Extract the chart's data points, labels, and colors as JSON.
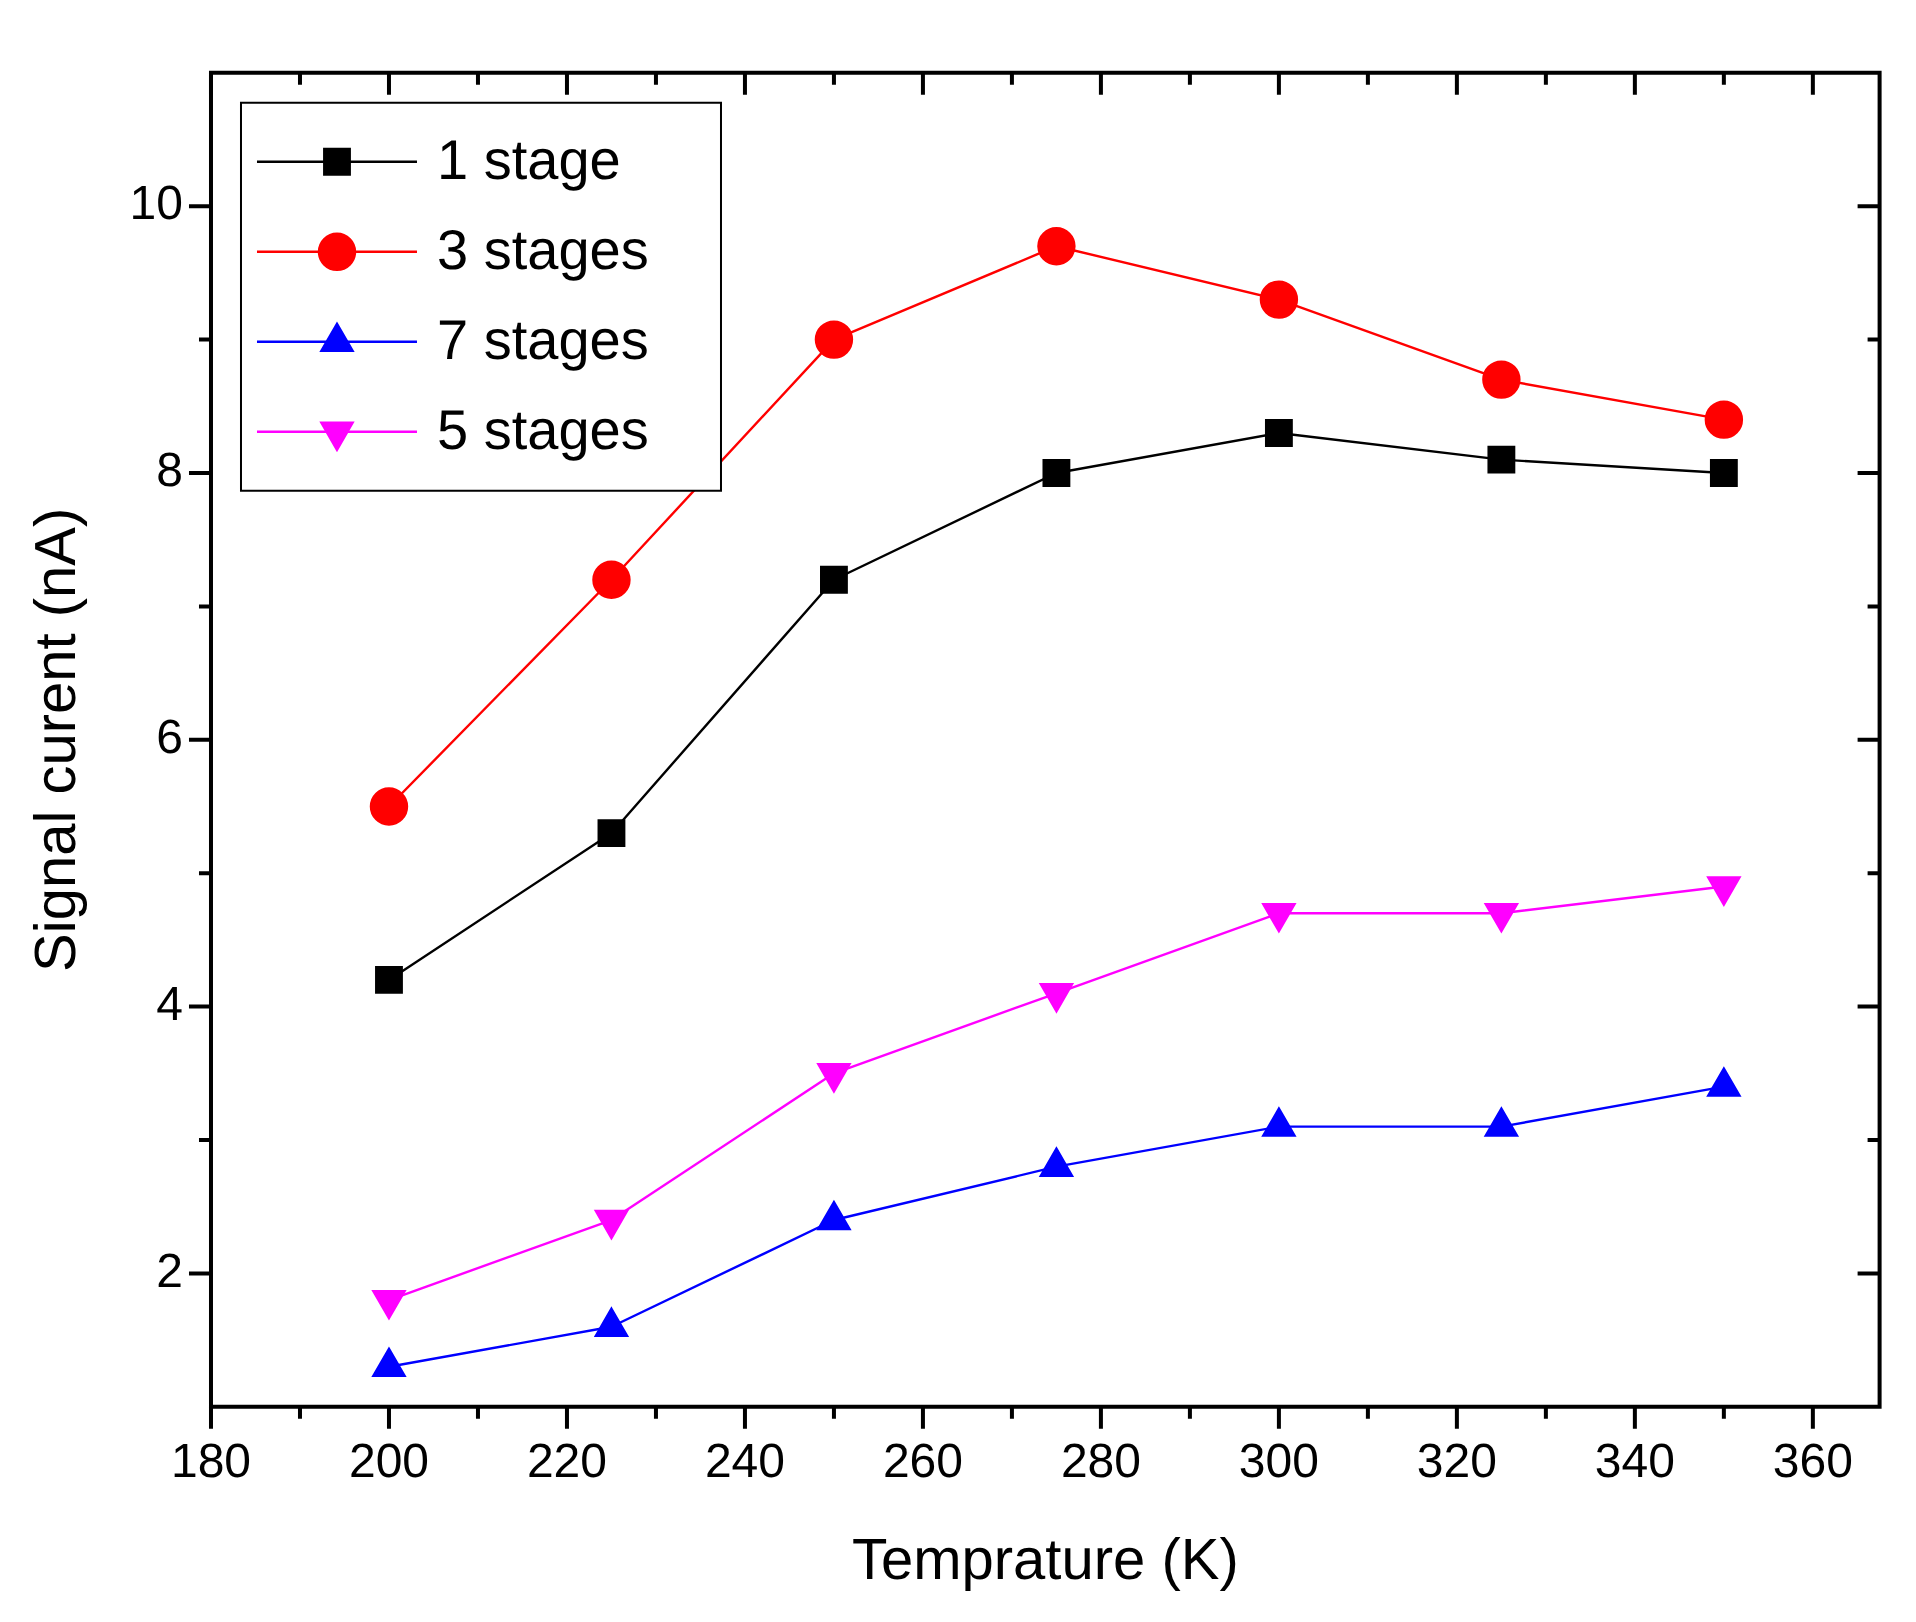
{
  "chart_data": {
    "type": "line",
    "xlabel": "Temprature (K)",
    "ylabel": "Signal curent (nA)",
    "x": [
      200,
      225,
      250,
      275,
      300,
      325,
      350
    ],
    "series": [
      {
        "name": "1 stage",
        "color": "#000000",
        "marker": "square",
        "values": [
          4.2,
          5.3,
          7.2,
          8.0,
          8.3,
          8.1,
          8.0
        ]
      },
      {
        "name": "3 stages",
        "color": "#ff0000",
        "marker": "circle",
        "values": [
          5.5,
          7.2,
          9.0,
          9.7,
          9.3,
          8.7,
          8.4
        ]
      },
      {
        "name": "7 stages",
        "color": "#0000ff",
        "marker": "triangle",
        "values": [
          1.3,
          1.6,
          2.4,
          2.8,
          3.1,
          3.1,
          3.4
        ]
      },
      {
        "name": "5 stages",
        "color": "#ff00ff",
        "marker": "triangle-down",
        "values": [
          1.8,
          2.4,
          3.5,
          4.1,
          4.7,
          4.7,
          4.9
        ]
      }
    ],
    "xlim": [
      180,
      367.5
    ],
    "xticks": [
      180,
      {
        "value": 190,
        "label": null
      },
      200,
      {
        "value": 210,
        "label": null
      },
      220,
      {
        "value": 230,
        "label": null
      },
      240,
      {
        "value": 250,
        "label": null
      },
      260,
      {
        "value": 270,
        "label": null
      },
      280,
      {
        "value": 290,
        "label": null
      },
      300,
      {
        "value": 310,
        "label": null
      },
      320,
      {
        "value": 330,
        "label": null
      },
      340,
      {
        "value": 350,
        "label": null
      },
      360
    ],
    "ylim": [
      1,
      11
    ],
    "yticks": [
      2,
      {
        "value": 3,
        "label": null
      },
      4,
      {
        "value": 5,
        "label": null
      },
      6,
      {
        "value": 7,
        "label": null
      },
      8,
      {
        "value": 9,
        "label": null
      },
      10
    ],
    "grid": false,
    "legend": "top left",
    "line_style": "solid"
  }
}
